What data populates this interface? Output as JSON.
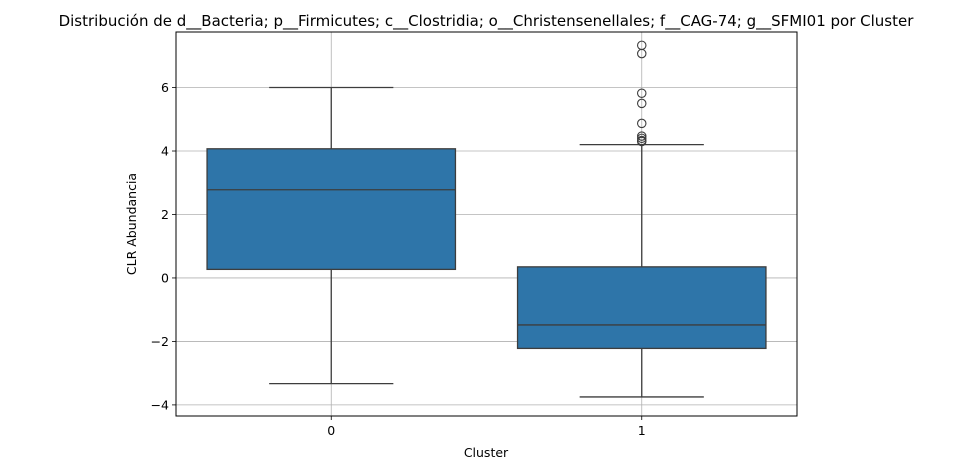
{
  "chart_data": {
    "type": "box",
    "title": "Distribución de d__Bacteria; p__Firmicutes; c__Clostridia; o__Christensenellales; f__CAG-74; g__SFMI01 por Cluster",
    "xlabel": "Cluster",
    "ylabel": "CLR Abundancia",
    "categories": [
      "0",
      "1"
    ],
    "ylim": [
      -4.35,
      7.75
    ],
    "yticks": [
      -4,
      -2,
      0,
      2,
      4,
      6
    ],
    "ytick_labels": [
      "−4",
      "−2",
      "0",
      "2",
      "4",
      "6"
    ],
    "grid": true,
    "box_color": "#2e75a9",
    "boxes": [
      {
        "category": "0",
        "whisker_low": -3.33,
        "q1": 0.27,
        "median": 2.78,
        "q3": 4.07,
        "whisker_high": 6.0,
        "outliers": []
      },
      {
        "category": "1",
        "whisker_low": -3.75,
        "q1": -2.22,
        "median": -1.48,
        "q3": 0.35,
        "whisker_high": 4.2,
        "outliers": [
          7.33,
          7.07,
          5.82,
          5.5,
          4.87,
          4.47,
          4.4,
          4.33,
          4.3
        ]
      }
    ]
  }
}
